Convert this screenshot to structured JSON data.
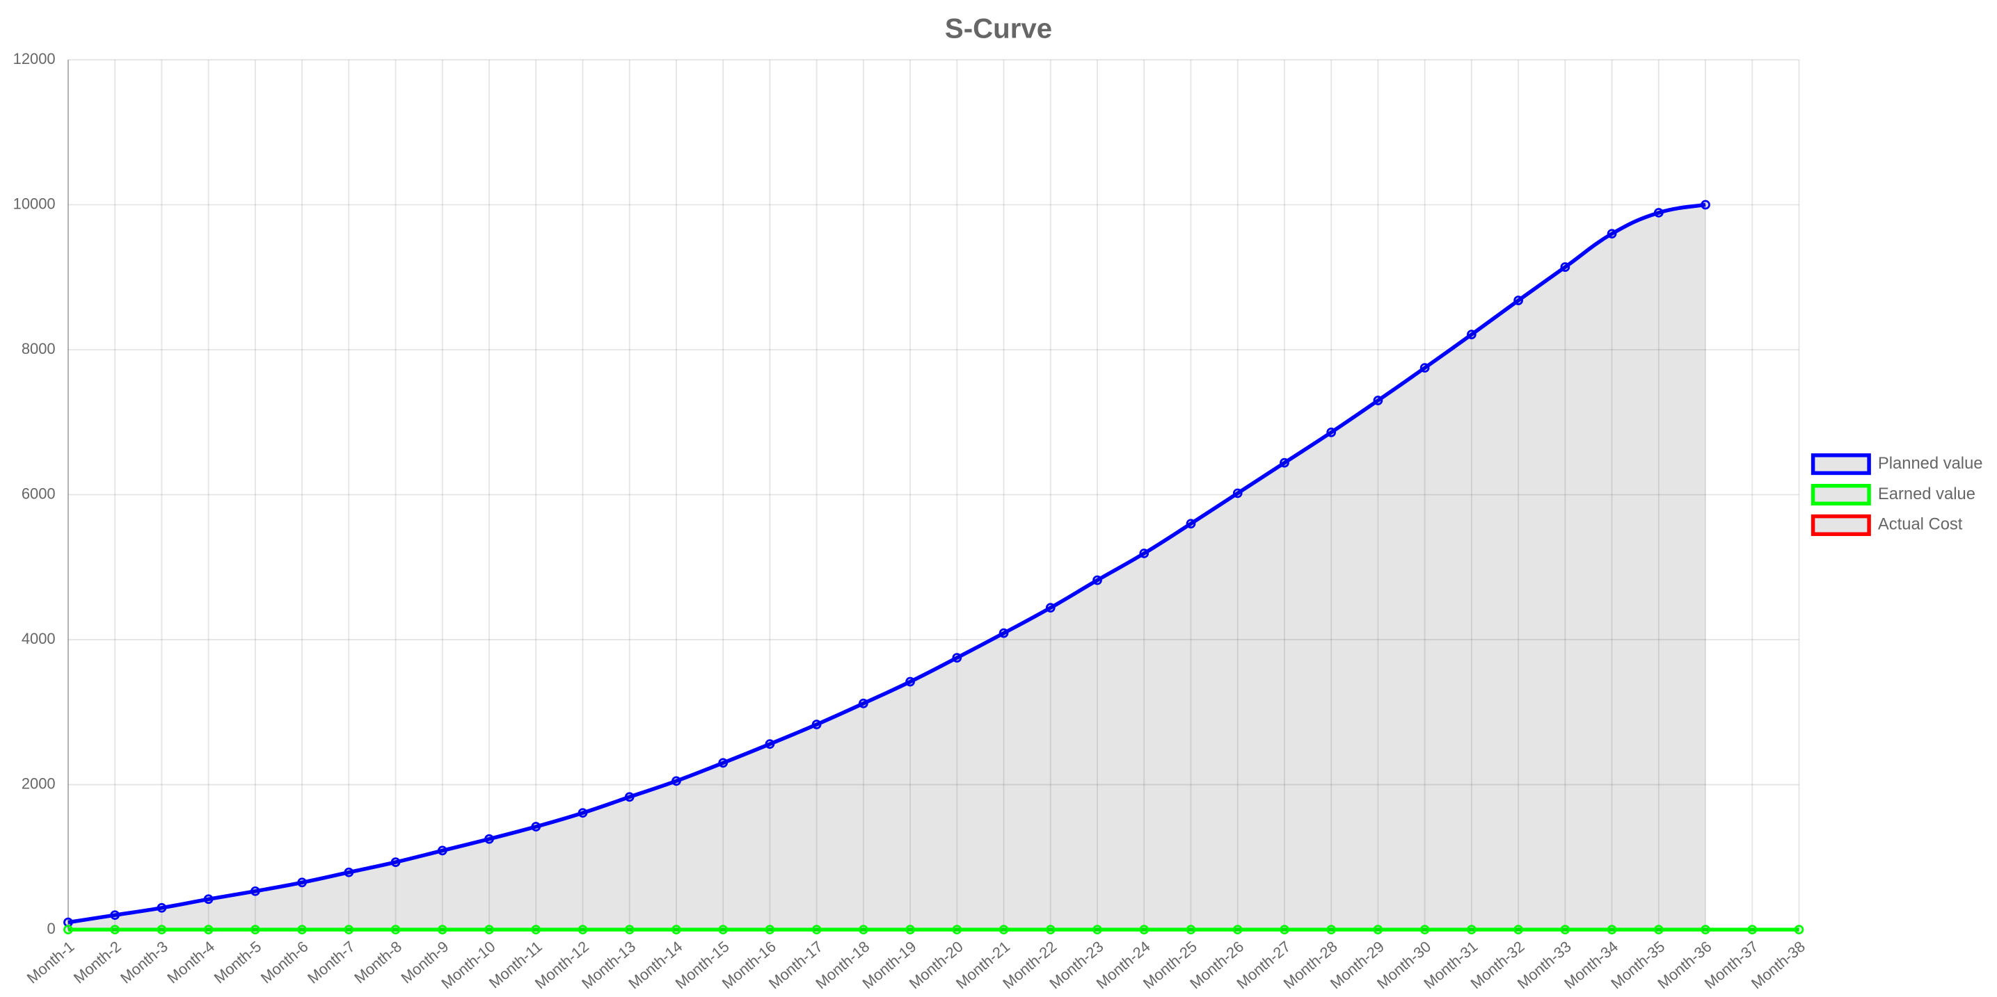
{
  "chart_data": {
    "type": "line",
    "title": "S-Curve",
    "categories": [
      "Month-1",
      "Month-2",
      "Month-3",
      "Month-4",
      "Month-5",
      "Month-6",
      "Month-7",
      "Month-8",
      "Month-9",
      "Month-10",
      "Month-11",
      "Month-12",
      "Month-13",
      "Month-14",
      "Month-15",
      "Month-16",
      "Month-17",
      "Month-18",
      "Month-19",
      "Month-20",
      "Month-21",
      "Month-22",
      "Month-23",
      "Month-24",
      "Month-25",
      "Month-26",
      "Month-27",
      "Month-28",
      "Month-29",
      "Month-30",
      "Month-31",
      "Month-32",
      "Month-33",
      "Month-34",
      "Month-35",
      "Month-36",
      "Month-37",
      "Month-38"
    ],
    "series": [
      {
        "name": "Planned value",
        "color": "#0000ff",
        "fill": true,
        "values": [
          100,
          200,
          300,
          420,
          530,
          650,
          790,
          930,
          1090,
          1250,
          1420,
          1610,
          1830,
          2050,
          2300,
          2560,
          2830,
          3120,
          3420,
          3750,
          4090,
          4440,
          4820,
          5190,
          5600,
          6020,
          6440,
          6860,
          7300,
          7750,
          8210,
          8680,
          9140,
          9600,
          9890,
          10000,
          null,
          null
        ]
      },
      {
        "name": "Earned value",
        "color": "#00ff00",
        "fill": false,
        "values": [
          0,
          0,
          0,
          0,
          0,
          0,
          0,
          0,
          0,
          0,
          0,
          0,
          0,
          0,
          0,
          0,
          0,
          0,
          0,
          0,
          0,
          0,
          0,
          0,
          0,
          0,
          0,
          0,
          0,
          0,
          0,
          0,
          0,
          0,
          0,
          0,
          0,
          0
        ]
      },
      {
        "name": "Actual Cost",
        "color": "#ff0000",
        "fill": false,
        "values": [
          null,
          null,
          null,
          null,
          null,
          null,
          null,
          null,
          null,
          null,
          null,
          null,
          null,
          null,
          null,
          null,
          null,
          null,
          null,
          null,
          null,
          null,
          null,
          null,
          null,
          null,
          null,
          null,
          null,
          null,
          null,
          null,
          null,
          null,
          null,
          null,
          null,
          null
        ]
      }
    ],
    "ylim": [
      0,
      12000
    ],
    "yticks": [
      0,
      2000,
      4000,
      6000,
      8000,
      10000,
      12000
    ],
    "grid": true,
    "legend": "right"
  }
}
